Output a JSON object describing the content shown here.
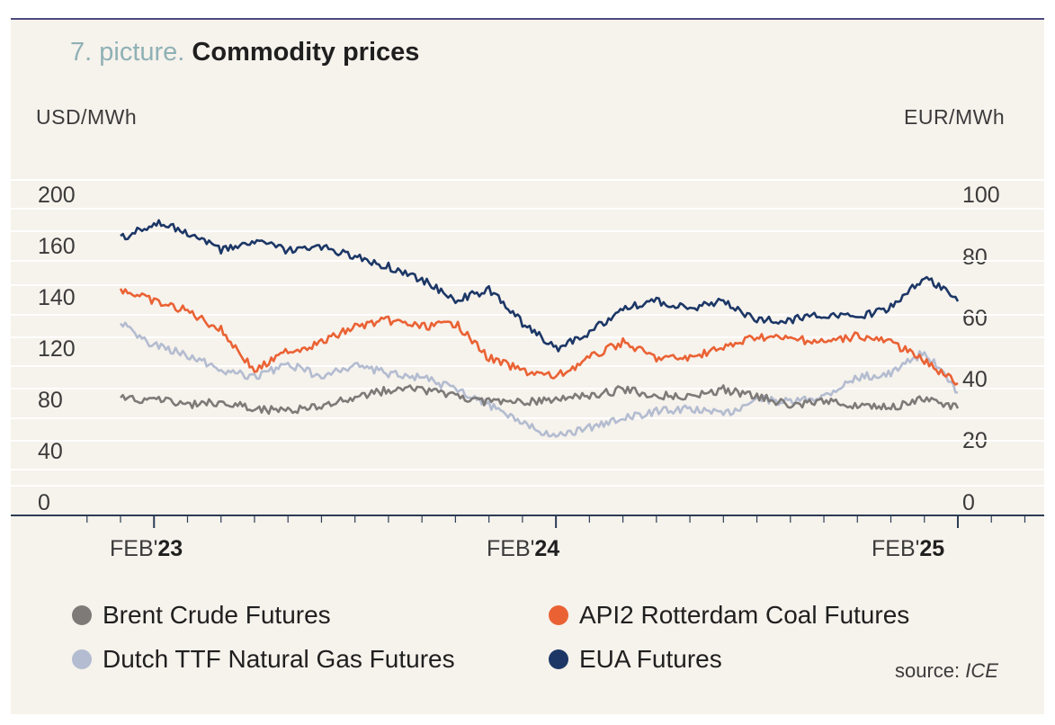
{
  "title_prefix": "7. picture.",
  "title": "Commodity prices",
  "source_label": "source:",
  "source_name": "ICE",
  "chart_data": {
    "type": "line",
    "left_unit": "USD/MWh",
    "right_unit": "EUR/MWh",
    "left_ticks": [
      "0",
      "40",
      "80",
      "120",
      "140",
      "160",
      "200"
    ],
    "right_ticks": [
      "0",
      "20",
      "40",
      "60",
      "80",
      "100"
    ],
    "right_ylim": [
      0,
      100
    ],
    "x_labels": [
      {
        "month": "FEB'",
        "year": "23"
      },
      {
        "month": "FEB'",
        "year": "24"
      },
      {
        "month": "FEB'",
        "year": "25"
      }
    ],
    "x_range": [
      "2023-01",
      "2025-02"
    ],
    "grid": "horizontal",
    "legend_position": "bottom",
    "series": [
      {
        "name": "Brent Crude Futures",
        "color": "#7d7a78",
        "axis": "right",
        "x": [
          "2023-01",
          "2023-02",
          "2023-03",
          "2023-04",
          "2023-05",
          "2023-06",
          "2023-07",
          "2023-08",
          "2023-09",
          "2023-10",
          "2023-11",
          "2023-12",
          "2024-01",
          "2024-02",
          "2024-03",
          "2024-04",
          "2024-05",
          "2024-06",
          "2024-07",
          "2024-08",
          "2024-09",
          "2024-10",
          "2024-11",
          "2024-12",
          "2025-01",
          "2025-02"
        ],
        "values": [
          37,
          37,
          35,
          36,
          34,
          33,
          35,
          37,
          40,
          40,
          38,
          36,
          36,
          37,
          38,
          40,
          38,
          38,
          40,
          38,
          35,
          36,
          35,
          34,
          37,
          34
        ]
      },
      {
        "name": "API2 Rotterdam Coal Futures",
        "color": "#ea6234",
        "axis": "right",
        "x": [
          "2023-01",
          "2023-02",
          "2023-03",
          "2023-04",
          "2023-05",
          "2023-06",
          "2023-07",
          "2023-08",
          "2023-09",
          "2023-10",
          "2023-11",
          "2023-12",
          "2024-01",
          "2024-02",
          "2024-03",
          "2024-04",
          "2024-05",
          "2024-06",
          "2024-07",
          "2024-08",
          "2024-09",
          "2024-10",
          "2024-11",
          "2024-12",
          "2025-01",
          "2025-02"
        ],
        "values": [
          72,
          68,
          65,
          59,
          46,
          52,
          55,
          60,
          62,
          60,
          61,
          50,
          46,
          44,
          50,
          55,
          50,
          50,
          53,
          57,
          56,
          55,
          57,
          55,
          49,
          42
        ]
      },
      {
        "name": "Dutch TTF Natural Gas Futures",
        "color": "#b3bcd0",
        "axis": "right",
        "x": [
          "2023-01",
          "2023-02",
          "2023-03",
          "2023-04",
          "2023-05",
          "2023-06",
          "2023-07",
          "2023-08",
          "2023-09",
          "2023-10",
          "2023-11",
          "2023-12",
          "2024-01",
          "2024-02",
          "2024-03",
          "2024-04",
          "2024-05",
          "2024-06",
          "2024-07",
          "2024-08",
          "2024-09",
          "2024-10",
          "2024-11",
          "2024-12",
          "2025-01",
          "2025-02"
        ],
        "values": [
          61,
          54,
          51,
          46,
          44,
          48,
          44,
          48,
          45,
          44,
          40,
          35,
          29,
          25,
          28,
          31,
          33,
          34,
          32,
          37,
          36,
          38,
          44,
          45,
          52,
          39
        ]
      },
      {
        "name": "EUA Futures",
        "color": "#1c3766",
        "axis": "right",
        "x": [
          "2023-01",
          "2023-02",
          "2023-03",
          "2023-04",
          "2023-05",
          "2023-06",
          "2023-07",
          "2023-08",
          "2023-09",
          "2023-10",
          "2023-11",
          "2023-12",
          "2024-01",
          "2024-02",
          "2024-03",
          "2024-04",
          "2024-05",
          "2024-06",
          "2024-07",
          "2024-08",
          "2024-09",
          "2024-10",
          "2024-11",
          "2024-12",
          "2025-01",
          "2025-02"
        ],
        "values": [
          88,
          93,
          90,
          84,
          87,
          84,
          85,
          82,
          79,
          75,
          68,
          72,
          61,
          53,
          58,
          66,
          68,
          66,
          68,
          62,
          62,
          64,
          63,
          66,
          76,
          68
        ]
      }
    ]
  }
}
